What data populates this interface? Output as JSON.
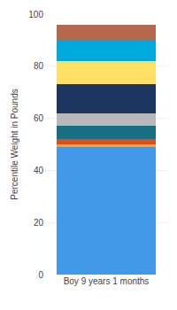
{
  "chart_data": {
    "type": "bar",
    "stacked": true,
    "grid": true,
    "categories": [
      "Boy 9 years 1 months"
    ],
    "ylabel": "Percentile Weight in Pounds",
    "ylim": [
      0,
      100
    ],
    "yticks": [
      0,
      20,
      40,
      60,
      80,
      100
    ],
    "series": [
      {
        "color": "#4299e8",
        "values": [
          49
        ]
      },
      {
        "color": "#f5a623",
        "values": [
          1
        ]
      },
      {
        "color": "#d94f1e",
        "values": [
          2
        ]
      },
      {
        "color": "#1a6e84",
        "values": [
          5
        ]
      },
      {
        "color": "#b8b8b8",
        "values": [
          5
        ]
      },
      {
        "color": "#1e3461",
        "values": [
          11
        ]
      },
      {
        "color": "#ffe066",
        "values": [
          9
        ]
      },
      {
        "color": "#00aadd",
        "values": [
          8
        ]
      },
      {
        "color": "#b5694e",
        "values": [
          6
        ]
      }
    ]
  }
}
